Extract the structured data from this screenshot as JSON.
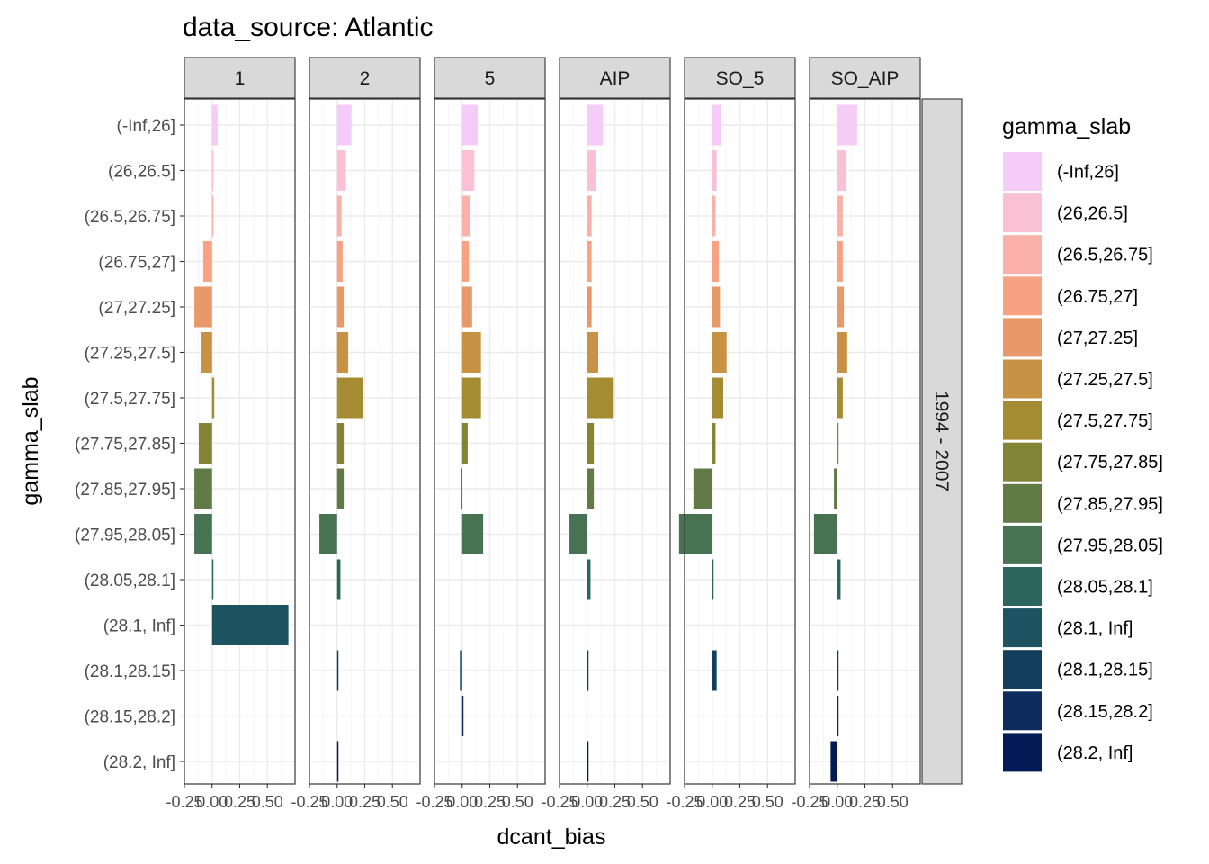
{
  "chart_data": {
    "type": "bar",
    "orientation": "horizontal",
    "title": "data_source: Atlantic",
    "xlabel": "dcant_bias",
    "ylabel": "gamma_slab",
    "xlim": [
      -0.25,
      0.75
    ],
    "x_ticks": [
      "-0.25",
      "0.00",
      "0.25",
      "0.50"
    ],
    "row_strip": "1994 - 2007",
    "grid": true,
    "legend_position": "right",
    "legend_title": "gamma_slab",
    "categories": [
      "(-Inf,26]",
      "(26,26.5]",
      "(26.5,26.75]",
      "(26.75,27]",
      "(27,27.25]",
      "(27.25,27.5]",
      "(27.5,27.75]",
      "(27.75,27.85]",
      "(27.85,27.95]",
      "(27.95,28.05]",
      "(28.05,28.1]",
      "(28.1, Inf]",
      "(28.1,28.15]",
      "(28.15,28.2]",
      "(28.2, Inf]"
    ],
    "colors": [
      "#f5ccf7",
      "#fac0d4",
      "#f9b1aa",
      "#f7a282",
      "#e8996a",
      "#c89244",
      "#a58b32",
      "#838436",
      "#627b46",
      "#477353",
      "#2c645e",
      "#1d5361",
      "#123f5e",
      "#0c2c5e",
      "#041a57"
    ],
    "panels": [
      {
        "label": "1",
        "values": [
          0.05,
          0.01,
          0.01,
          -0.08,
          -0.16,
          -0.1,
          0.02,
          -0.12,
          -0.16,
          -0.16,
          0.01,
          0.69,
          null,
          null,
          null
        ]
      },
      {
        "label": "2",
        "values": [
          0.13,
          0.08,
          0.04,
          0.05,
          0.06,
          0.1,
          0.23,
          0.06,
          0.06,
          -0.16,
          0.03,
          null,
          0.01,
          null,
          0.01
        ]
      },
      {
        "label": "5",
        "values": [
          0.14,
          0.11,
          0.07,
          0.06,
          0.09,
          0.17,
          0.17,
          0.05,
          -0.01,
          0.19,
          null,
          null,
          -0.02,
          0.01,
          null
        ]
      },
      {
        "label": "AIP",
        "values": [
          0.14,
          0.08,
          0.04,
          0.04,
          0.04,
          0.1,
          0.24,
          0.06,
          0.06,
          -0.16,
          0.03,
          null,
          0.01,
          null,
          0.01
        ]
      },
      {
        "label": "SO_5",
        "values": [
          0.08,
          0.04,
          0.03,
          0.06,
          0.07,
          0.13,
          0.1,
          0.03,
          -0.17,
          -0.3,
          0.01,
          null,
          0.04,
          null,
          null
        ]
      },
      {
        "label": "SO_AIP",
        "values": [
          0.18,
          0.08,
          0.05,
          0.05,
          0.06,
          0.09,
          0.05,
          0.01,
          -0.03,
          -0.21,
          0.03,
          null,
          0.01,
          0.01,
          -0.06
        ]
      }
    ]
  }
}
